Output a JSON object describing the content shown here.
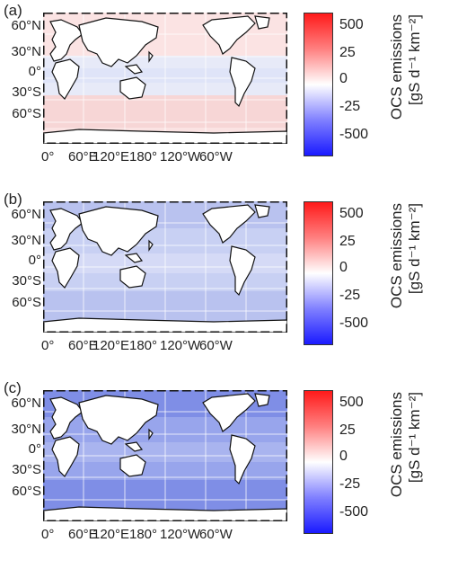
{
  "panels": [
    {
      "label": "(a)",
      "kind": "mixed",
      "colors": [
        "#fbe3e3",
        "#e7eaf8",
        "#f7d6d6"
      ]
    },
    {
      "label": "(b)",
      "kind": "uptake",
      "colors": [
        "#b9c2ef",
        "#c8d0f3",
        "#d5daf6"
      ]
    },
    {
      "label": "(c)",
      "kind": "uptake",
      "colors": [
        "#7f8ee6",
        "#98a5ec",
        "#a9b4ef"
      ]
    }
  ],
  "lat_labels": [
    "60°N",
    "30°N",
    "0°",
    "30°S",
    "60°S"
  ],
  "lon_labels": [
    "0°",
    "60°E",
    "120°E",
    "180°",
    "120°W",
    "60°W"
  ],
  "colorbar": {
    "ticks": [
      "500",
      "25",
      "0",
      "-25",
      "-500"
    ],
    "title": "OCS emissions",
    "unit": "[gS d⁻¹ km⁻²]",
    "colors": {
      "high": "#ff1a1a",
      "mid": "#ffffff",
      "low": "#1a1aff"
    }
  }
}
